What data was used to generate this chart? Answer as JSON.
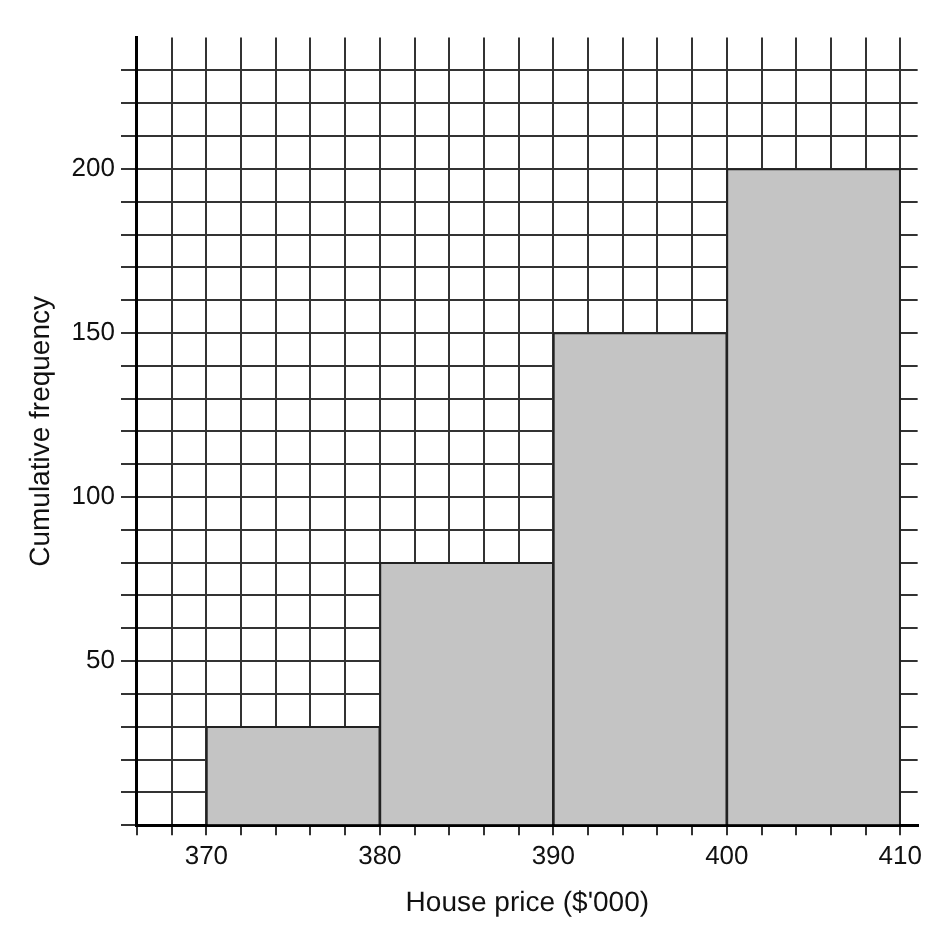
{
  "chart_data": {
    "type": "histogram",
    "xlabel": "House price ($'000)",
    "ylabel": "Cumulative frequency",
    "bins": [
      370,
      380,
      390,
      400,
      410
    ],
    "values": [
      30,
      80,
      150,
      200
    ],
    "color": "#c4c4c4",
    "xlim": [
      366,
      411
    ],
    "xticks": [
      {
        "value": 366,
        "label": null
      },
      {
        "value": 368,
        "label": null
      },
      370,
      {
        "value": 372,
        "label": null
      },
      {
        "value": 374,
        "label": null
      },
      {
        "value": 376,
        "label": null
      },
      {
        "value": 378,
        "label": null
      },
      380,
      {
        "value": 382,
        "label": null
      },
      {
        "value": 384,
        "label": null
      },
      {
        "value": 386,
        "label": null
      },
      {
        "value": 388,
        "label": null
      },
      390,
      {
        "value": 392,
        "label": null
      },
      {
        "value": 394,
        "label": null
      },
      {
        "value": 396,
        "label": null
      },
      {
        "value": 398,
        "label": null
      },
      400,
      {
        "value": 402,
        "label": null
      },
      {
        "value": 404,
        "label": null
      },
      {
        "value": 406,
        "label": null
      },
      {
        "value": 408,
        "label": null
      },
      410
    ],
    "ylim": [
      0,
      240
    ],
    "yticks": [
      {
        "value": 0,
        "label": null
      },
      {
        "value": 10,
        "label": null
      },
      {
        "value": 20,
        "label": null
      },
      {
        "value": 30,
        "label": null
      },
      {
        "value": 40,
        "label": null
      },
      50,
      {
        "value": 60,
        "label": null
      },
      {
        "value": 70,
        "label": null
      },
      {
        "value": 80,
        "label": null
      },
      {
        "value": 90,
        "label": null
      },
      100,
      {
        "value": 110,
        "label": null
      },
      {
        "value": 120,
        "label": null
      },
      {
        "value": 130,
        "label": null
      },
      {
        "value": 140,
        "label": null
      },
      150,
      {
        "value": 160,
        "label": null
      },
      {
        "value": 170,
        "label": null
      },
      {
        "value": 180,
        "label": null
      },
      {
        "value": 190,
        "label": null
      },
      200,
      {
        "value": 210,
        "label": null
      },
      {
        "value": 220,
        "label": null
      },
      {
        "value": 230,
        "label": null
      }
    ],
    "grid": true,
    "legend": false
  }
}
